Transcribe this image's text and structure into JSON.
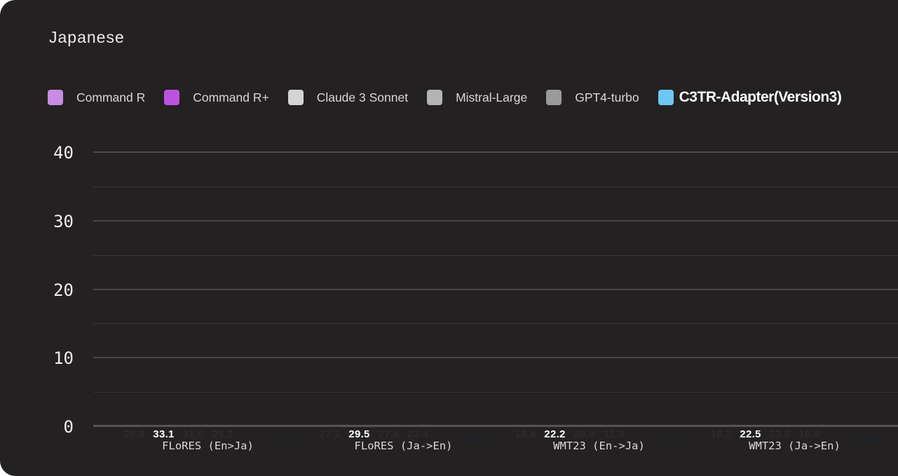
{
  "header": {
    "title": "Japanese"
  },
  "theme": {
    "page_background": "#ffffff",
    "card_background": "#242122",
    "grid_minor": "#383536",
    "grid_major": "#4a4748",
    "axis_line": "#565354",
    "text_primary": "#f1efec",
    "text_secondary": "#d9d7d4"
  },
  "chart_data": {
    "type": "bar",
    "title": "Japanese",
    "categories": [
      "FLoRES (En>Ja)",
      "FLoRES (Ja->En)",
      "WMT23 (En->Ja)",
      "WMT23 (Ja->En)"
    ],
    "series": [
      {
        "name": "Command R",
        "color": "#c88de2",
        "label_color": "#2d2a2d",
        "values": [
          29.8,
          27.1,
          18.4,
          18.2
        ]
      },
      {
        "name": "Command R+",
        "color": "#bd52e0",
        "label_color": "#ffffff",
        "values": [
          33.1,
          29.5,
          22.2,
          22.5
        ]
      },
      {
        "name": "Claude 3 Sonnet",
        "color": "#d4d4d4",
        "label_color": "#2d2a2d",
        "values": [
          31.6,
          27.4,
          20.9,
          23.0
        ]
      },
      {
        "name": "Mistral-Large",
        "color": "#b4b4b6",
        "label_color": "#2d2a2d",
        "values": [
          24.2,
          23.4,
          11.3,
          19.4
        ]
      },
      {
        "name": "GPT4-turbo",
        "color": "#9a9a9a",
        "label_color": "#242122",
        "values": [
          36.4,
          28.1,
          22.4,
          24.4
        ]
      },
      {
        "name": "C3TR-Adapter(Version3)",
        "color": "#6ec7f2",
        "label_color": "#1c2530",
        "values": [
          35.1,
          30.6,
          21.9,
          23.3
        ],
        "square_corners": true,
        "legend_emphasis": true,
        "alt_style_label_indices": [
          0,
          2
        ]
      }
    ],
    "ylim": [
      0,
      40
    ],
    "yticks": [
      0,
      10,
      20,
      30,
      40
    ],
    "grid_step": 5,
    "grid": true,
    "legend_position": "top",
    "value_format": "fixed1"
  }
}
